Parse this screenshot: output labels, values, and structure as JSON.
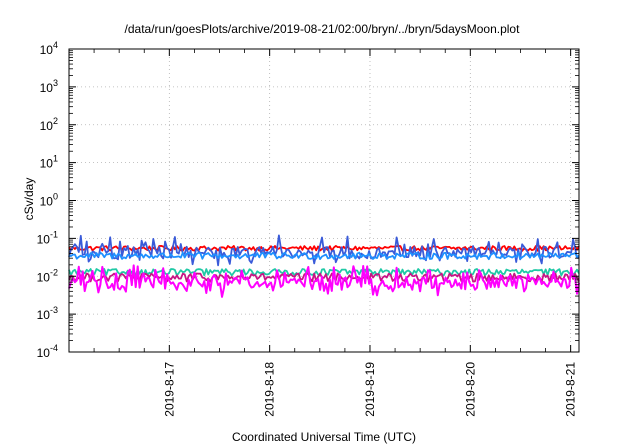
{
  "chart_data": {
    "type": "line",
    "title": "/data/run/goesPlots/archive/2019-08-21/02:00/bryn/../bryn/5daysMoon.plot",
    "xlabel": "Coordinated Universal Time (UTC)",
    "ylabel": "cSv/day",
    "yscale": "log",
    "ylim": [
      0.0001,
      10000
    ],
    "xlim": [
      "2019-08-16T00:00",
      "2019-08-21T02:00"
    ],
    "x_tick_labels": [
      "2019-8-17",
      "2019-8-18",
      "2019-8-19",
      "2019-8-20",
      "2019-8-21"
    ],
    "y_tick_labels": [
      {
        "base": "10",
        "exp": "-4"
      },
      {
        "base": "10",
        "exp": "-3"
      },
      {
        "base": "10",
        "exp": "-2"
      },
      {
        "base": "10",
        "exp": "-1"
      },
      {
        "base": "10",
        "exp": "0"
      },
      {
        "base": "10",
        "exp": "1"
      },
      {
        "base": "10",
        "exp": "2"
      },
      {
        "base": "10",
        "exp": "3"
      },
      {
        "base": "10",
        "exp": "4"
      }
    ],
    "grid": true,
    "legend": "none",
    "series": [
      {
        "color": "#ff0000",
        "level": 0.055,
        "spread": 0.15,
        "spikes": 0.0
      },
      {
        "color": "#3a5bd9",
        "level": 0.045,
        "spread": 0.35,
        "spikes": 0.35
      },
      {
        "color": "#1e90ff",
        "level": 0.035,
        "spread": 0.2,
        "spikes": 0.0
      },
      {
        "color": "#20c9a6",
        "level": 0.013,
        "spread": 0.2,
        "spikes": 0.0
      },
      {
        "color": "#c71585",
        "level": 0.0095,
        "spread": 0.25,
        "spikes": 0.0
      },
      {
        "color": "#ff00ff",
        "level": 0.007,
        "spread": 0.35,
        "spikes": 0.45
      }
    ]
  }
}
